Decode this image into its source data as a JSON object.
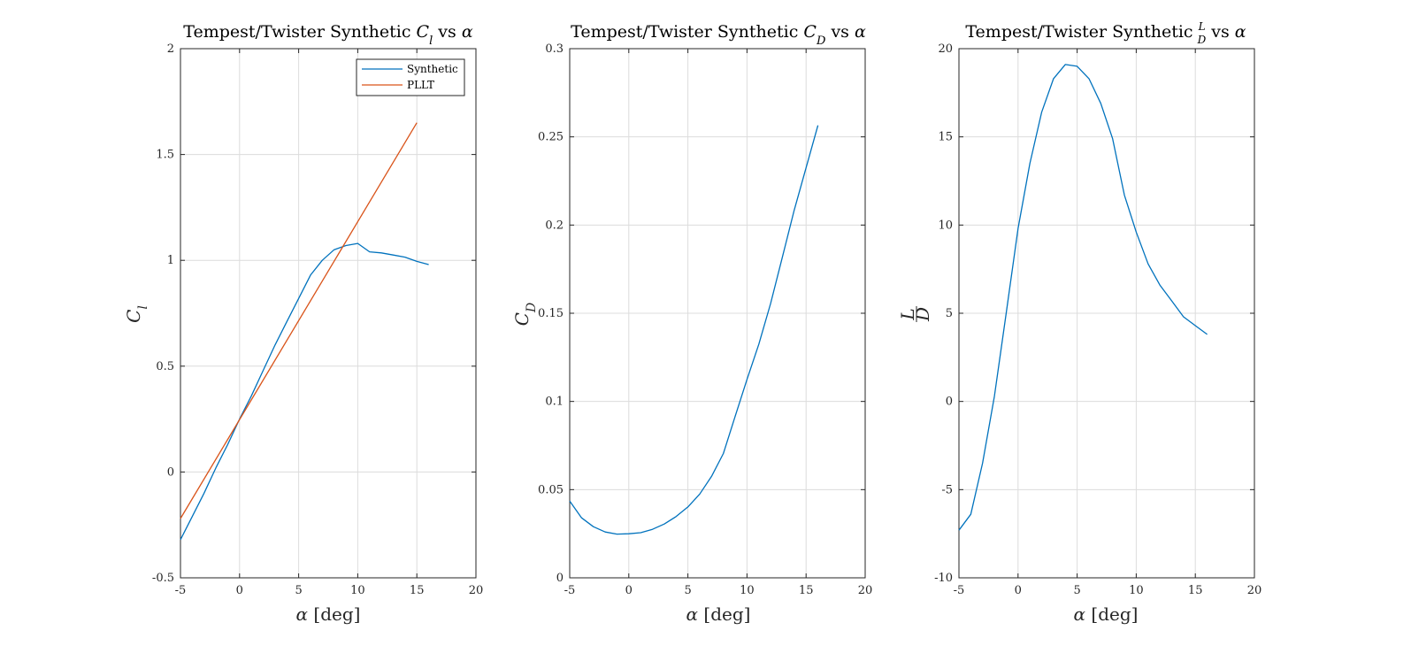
{
  "chart_data": [
    {
      "type": "line",
      "title": [
        "Tempest/Twister Synthetic ",
        "C",
        "l",
        " vs ",
        "α"
      ],
      "xlabel": [
        "α",
        " [deg]"
      ],
      "ylabel": [
        "C",
        "l"
      ],
      "xlim": [
        -5,
        20
      ],
      "ylim": [
        -0.5,
        2
      ],
      "xticks": [
        "-5",
        "0",
        "5",
        "10",
        "15",
        "20"
      ],
      "yticks": [
        "-0.5",
        "0",
        "0.5",
        "1",
        "1.5",
        "2"
      ],
      "grid": true,
      "legend": {
        "placement": "top-right",
        "entries": [
          "Synthetic",
          "PLLT"
        ]
      },
      "series": [
        {
          "name": "Synthetic",
          "color": "#0072bd",
          "x": [
            -5,
            -4,
            -3,
            -2,
            -1,
            0,
            1,
            2,
            3,
            4,
            5,
            6,
            7,
            8,
            9,
            10,
            11,
            12,
            13,
            14,
            15,
            16
          ],
          "y": [
            -0.32,
            -0.21,
            -0.1,
            0.02,
            0.13,
            0.25,
            0.36,
            0.48,
            0.6,
            0.71,
            0.82,
            0.93,
            1.0,
            1.05,
            1.07,
            1.08,
            1.04,
            1.035,
            1.025,
            1.015,
            0.995,
            0.98
          ]
        },
        {
          "name": "PLLT",
          "color": "#d95319",
          "x": [
            -5,
            15
          ],
          "y": [
            -0.22,
            1.65
          ]
        }
      ]
    },
    {
      "type": "line",
      "title": [
        "Tempest/Twister Synthetic ",
        "C",
        "D",
        " vs ",
        "α"
      ],
      "xlabel": [
        "α",
        " [deg]"
      ],
      "ylabel": [
        "C",
        "D"
      ],
      "xlim": [
        -5,
        20
      ],
      "ylim": [
        0,
        0.3
      ],
      "xticks": [
        "-5",
        "0",
        "5",
        "10",
        "15",
        "20"
      ],
      "yticks": [
        "0",
        "0.05",
        "0.1",
        "0.15",
        "0.2",
        "0.25",
        "0.3"
      ],
      "grid": true,
      "series": [
        {
          "color": "#0072bd",
          "x": [
            -5,
            -4,
            -3,
            -2,
            -1,
            0,
            1,
            2,
            3,
            4,
            5,
            6,
            7,
            8,
            9,
            10,
            11,
            12,
            13,
            14,
            15,
            16
          ],
          "y": [
            0.0435,
            0.034,
            0.029,
            0.026,
            0.0248,
            0.025,
            0.0256,
            0.0275,
            0.0305,
            0.0347,
            0.0402,
            0.0475,
            0.0575,
            0.0705,
            0.0915,
            0.1125,
            0.1325,
            0.1555,
            0.182,
            0.2085,
            0.2325,
            0.2565
          ]
        }
      ]
    },
    {
      "type": "line",
      "title": [
        "Tempest/Twister Synthetic ",
        "L",
        "D",
        " vs ",
        "α"
      ],
      "xlabel": [
        "α",
        " [deg]"
      ],
      "ylabel": [
        "L",
        "D"
      ],
      "xlim": [
        -5,
        20
      ],
      "ylim": [
        -10,
        20
      ],
      "xticks": [
        "-5",
        "0",
        "5",
        "10",
        "15",
        "20"
      ],
      "yticks": [
        "-10",
        "-5",
        "0",
        "5",
        "10",
        "15",
        "20"
      ],
      "grid": true,
      "series": [
        {
          "color": "#0072bd",
          "x": [
            -5,
            -4,
            -3,
            -2,
            -1,
            0,
            1,
            2,
            3,
            4,
            5,
            6,
            7,
            8,
            9,
            10,
            11,
            12,
            13,
            14,
            15,
            16
          ],
          "y": [
            -7.3,
            -6.4,
            -3.5,
            0.3,
            5.0,
            9.8,
            13.5,
            16.4,
            18.3,
            19.1,
            19.0,
            18.3,
            16.9,
            14.9,
            11.7,
            9.6,
            7.8,
            6.6,
            5.7,
            4.8,
            4.3,
            3.8
          ]
        }
      ]
    }
  ]
}
